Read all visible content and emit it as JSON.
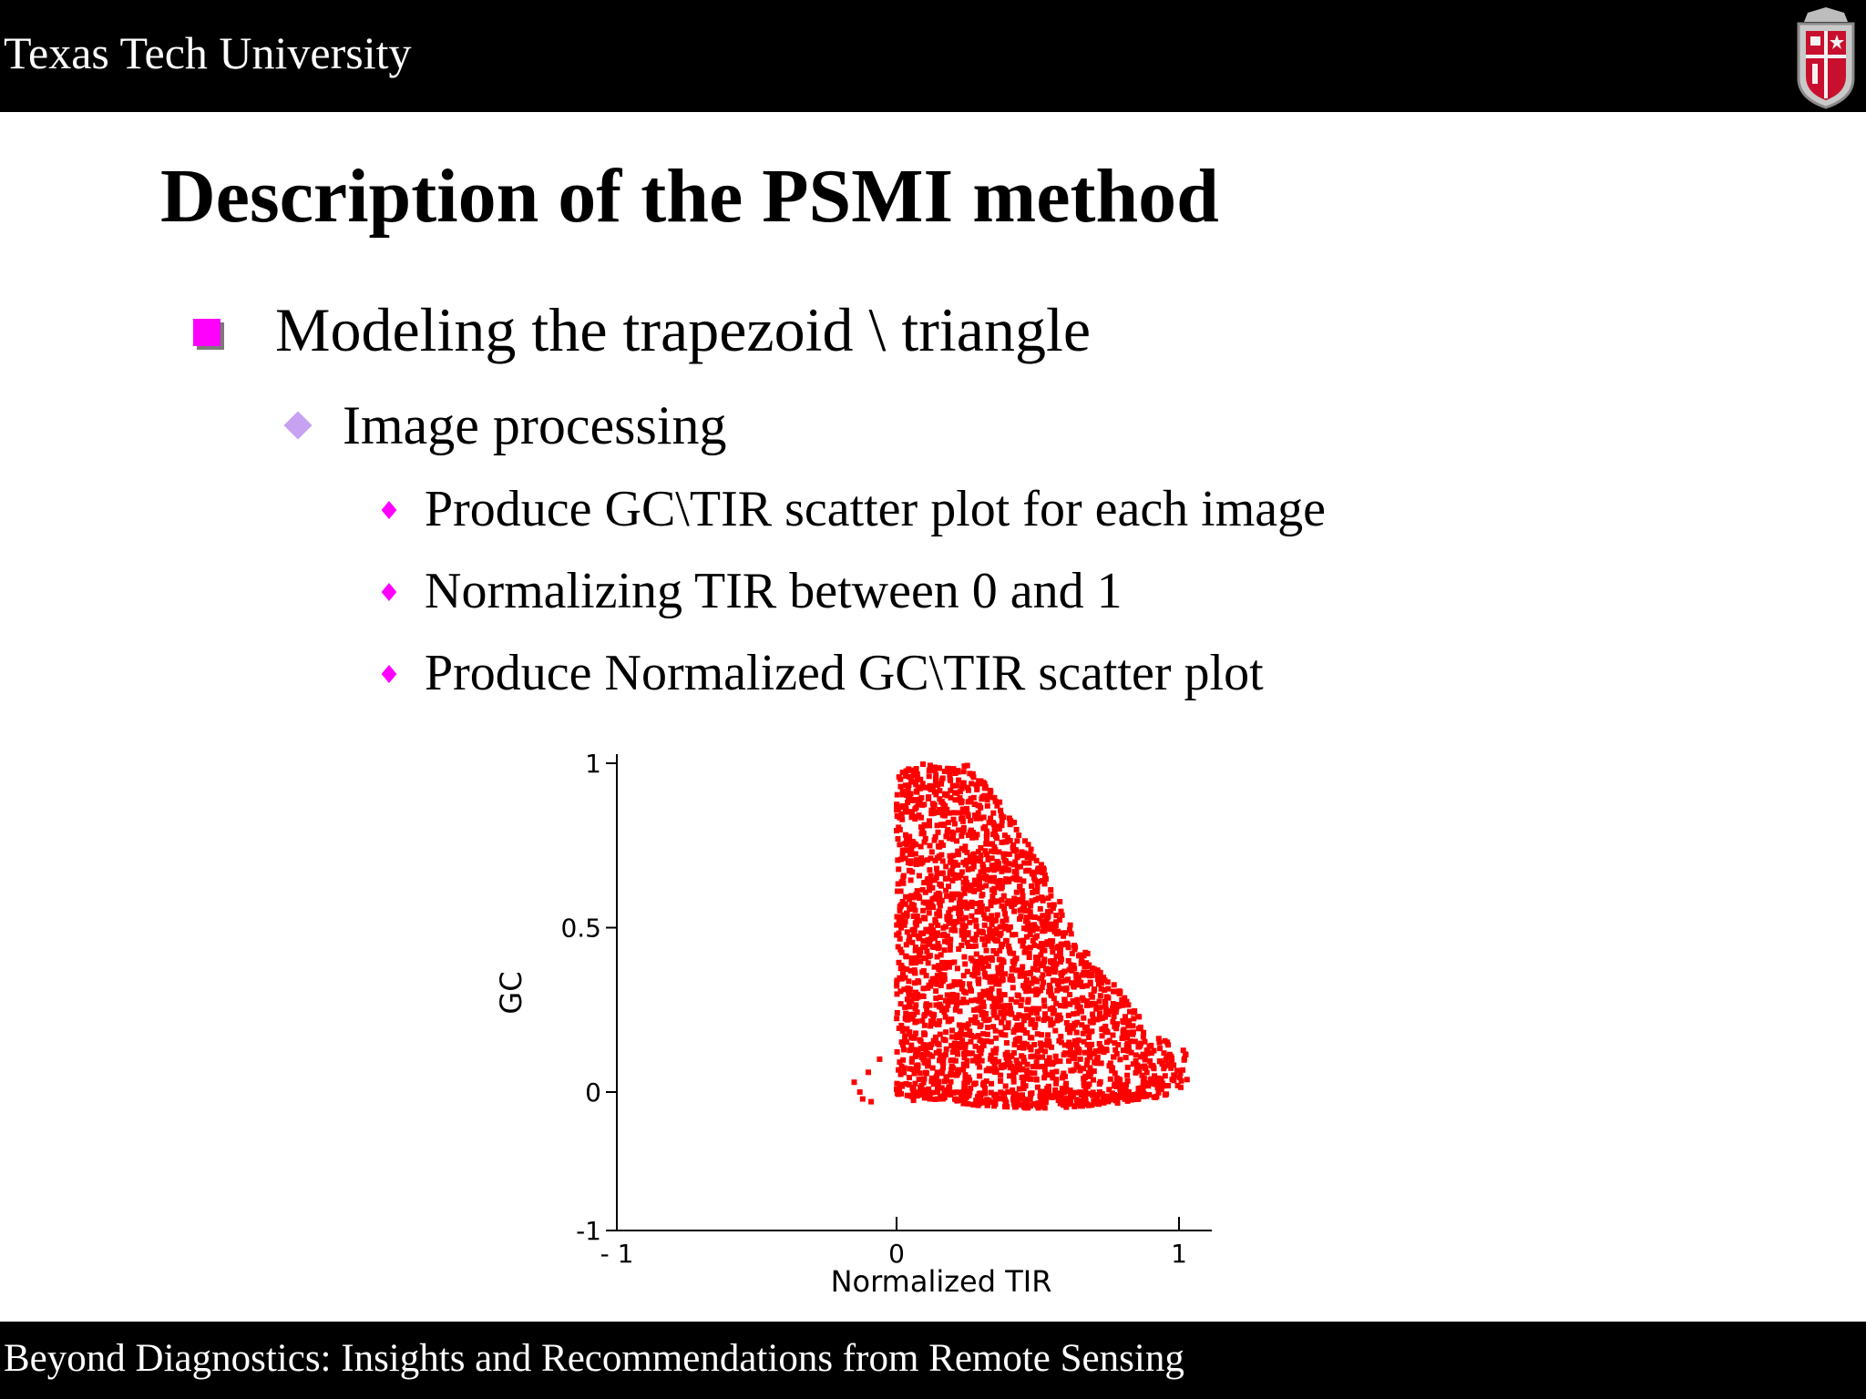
{
  "header": {
    "institution": "Texas Tech University"
  },
  "slide": {
    "title": "Description of the PSMI method",
    "bullets": {
      "level1": "Modeling the trapezoid \\ triangle",
      "level2": "Image processing",
      "level3": [
        "Produce GC\\TIR scatter plot for each image",
        "Normalizing TIR between 0 and 1",
        "Produce Normalized GC\\TIR scatter plot"
      ]
    }
  },
  "footer": {
    "text": "Beyond Diagnostics:  Insights and Recommendations from Remote Sensing"
  },
  "colors": {
    "marker_primary": "#ff00ff",
    "marker_secondary": "#c8a2f2",
    "points": "#ff0000"
  },
  "chart_data": {
    "type": "scatter",
    "xlabel": "Normalized TIR",
    "ylabel": "GC",
    "xlim": [
      -1,
      1.1
    ],
    "ylim": [
      -1,
      1
    ],
    "x_ticks": [
      "- 1",
      "0",
      "1"
    ],
    "y_ticks": [
      "-1",
      "0",
      "0.5",
      "1"
    ],
    "grid": false,
    "description_shape": "dense red point cloud forming a triangle / trapezoid with vertices near (0,1), (0,0) and (1,0)",
    "series": [
      {
        "color": "#ff0000",
        "outline": [
          [
            0.0,
            0.97
          ],
          [
            0.1,
            1.0
          ],
          [
            0.25,
            1.0
          ],
          [
            0.35,
            0.9
          ],
          [
            0.5,
            0.72
          ],
          [
            0.65,
            0.45
          ],
          [
            0.8,
            0.3
          ],
          [
            0.9,
            0.18
          ],
          [
            1.03,
            0.12
          ],
          [
            1.03,
            0.02
          ],
          [
            0.9,
            -0.05
          ],
          [
            0.7,
            -0.1
          ],
          [
            0.5,
            -0.12
          ],
          [
            0.3,
            -0.1
          ],
          [
            0.0,
            -0.02
          ],
          [
            0.0,
            0.97
          ]
        ],
        "outliers": [
          [
            -0.15,
            0.03
          ],
          [
            -0.13,
            0.0
          ],
          [
            -0.1,
            0.06
          ],
          [
            -0.12,
            -0.05
          ],
          [
            -0.09,
            -0.07
          ],
          [
            -0.06,
            0.1
          ],
          [
            0.06,
            -0.06
          ]
        ]
      }
    ]
  }
}
